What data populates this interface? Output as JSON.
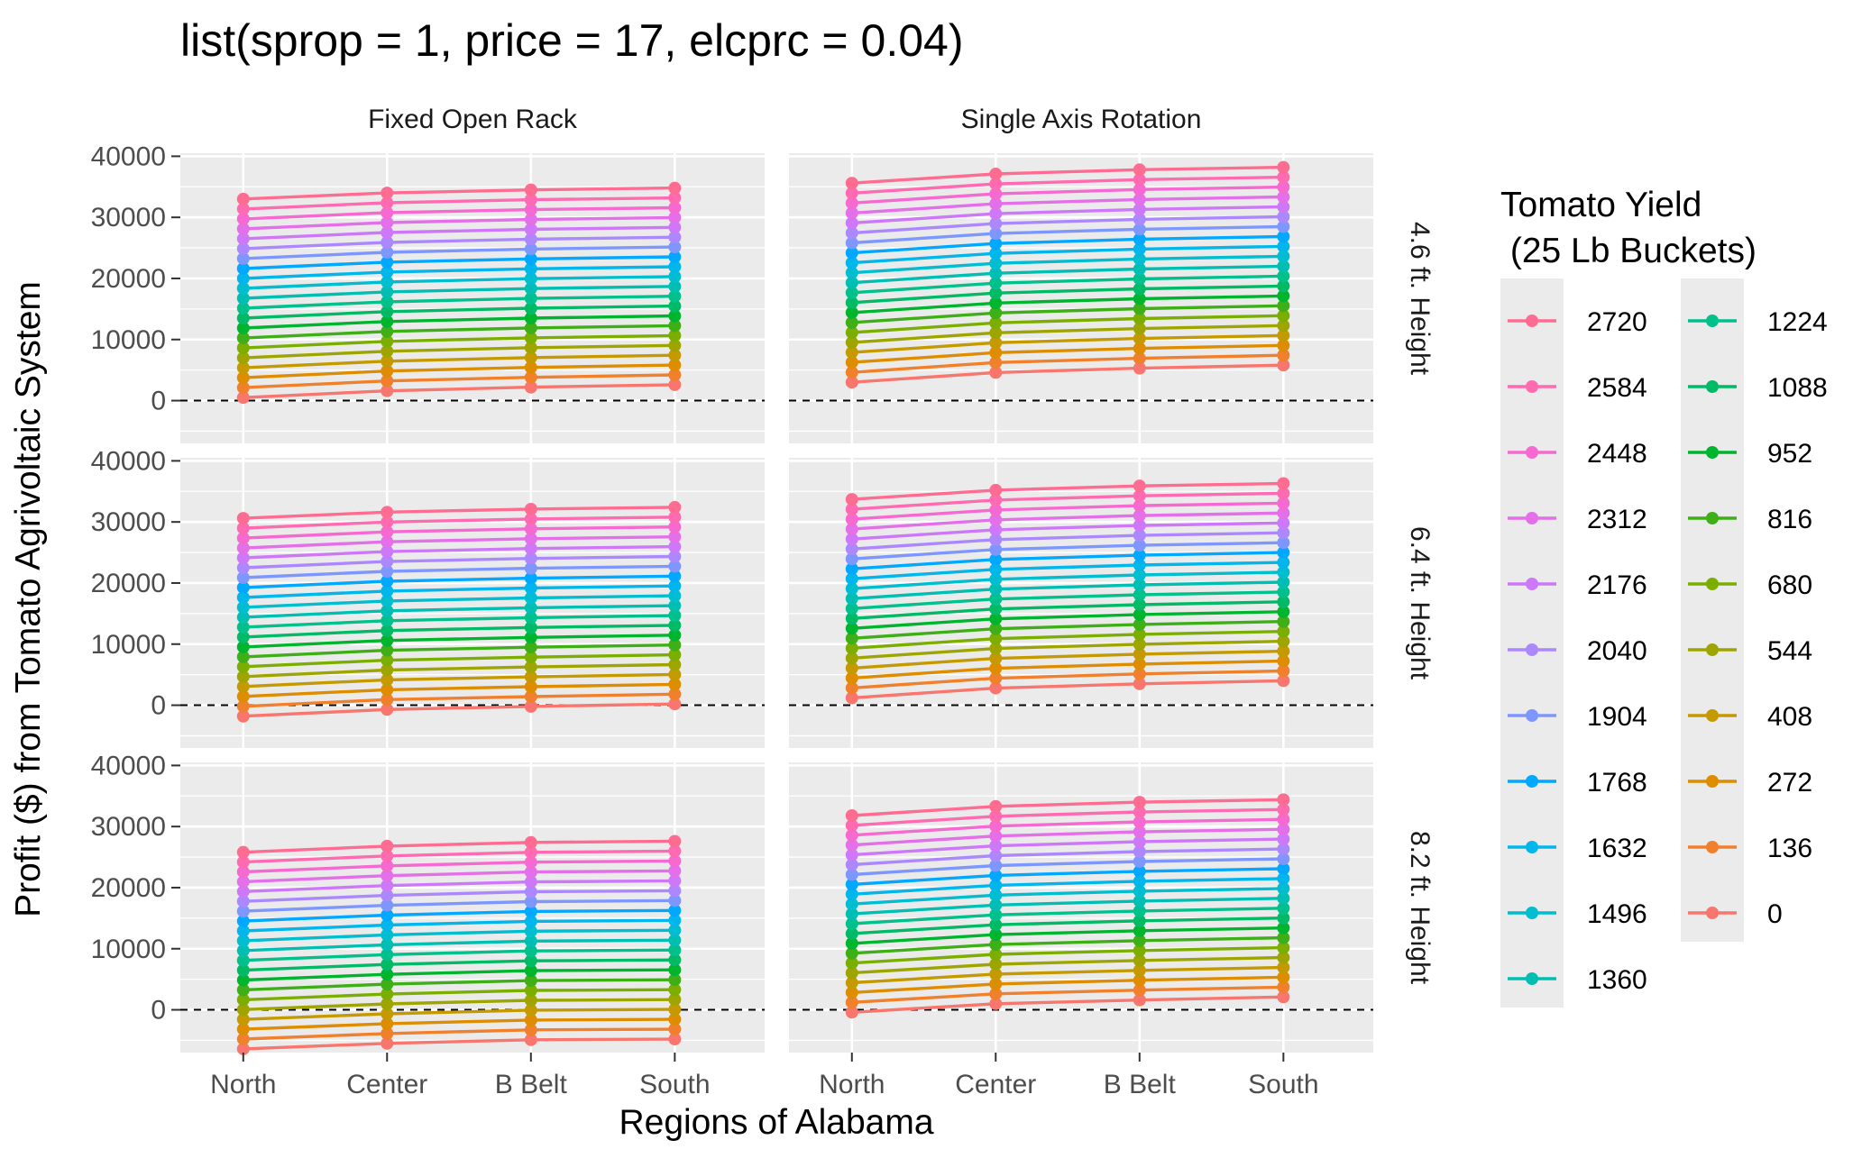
{
  "chart_data": {
    "type": "line",
    "title": "list(sprop = 1, price = 17, elcprc = 0.04)",
    "xlabel": "Regions of Alabama",
    "ylabel": "Profit ($) from Tomato Agrivoltaic System",
    "categories": [
      "North",
      "Center",
      "B Belt",
      "South"
    ],
    "ylim": [
      -7000,
      40500
    ],
    "yticks": [
      "0",
      "10000",
      "20000",
      "30000",
      "40000"
    ],
    "reference_line": {
      "y": 0,
      "style": "dashed"
    },
    "columns": [
      "Fixed Open Rack",
      "Single Axis Rotation"
    ],
    "rows": [
      "4.6 ft. Height",
      "6.4 ft. Height",
      "8.2 ft. Height"
    ],
    "legend": {
      "title_line1": "Tomato Yield",
      "title_line2": " (25 Lb Buckets)",
      "placement": "right",
      "entries": [
        {
          "label": "2720",
          "color": "#FF6C91"
        },
        {
          "label": "2584",
          "color": "#FF6AB0"
        },
        {
          "label": "2448",
          "color": "#F569D0"
        },
        {
          "label": "2312",
          "color": "#E36FE9"
        },
        {
          "label": "2176",
          "color": "#CD78F9"
        },
        {
          "label": "2040",
          "color": "#AC88FF"
        },
        {
          "label": "1904",
          "color": "#7D97FF"
        },
        {
          "label": "1768",
          "color": "#00A9FF"
        },
        {
          "label": "1632",
          "color": "#00B6EB"
        },
        {
          "label": "1496",
          "color": "#00BDD0"
        },
        {
          "label": "1360",
          "color": "#00BFB2"
        },
        {
          "label": "1224",
          "color": "#00C08B"
        },
        {
          "label": "1088",
          "color": "#00BA65"
        },
        {
          "label": "952",
          "color": "#00B52E"
        },
        {
          "label": "816",
          "color": "#3EAF17"
        },
        {
          "label": "680",
          "color": "#7CAE00"
        },
        {
          "label": "544",
          "color": "#9FA500"
        },
        {
          "label": "408",
          "color": "#C49A00"
        },
        {
          "label": "272",
          "color": "#DE8C00"
        },
        {
          "label": "136",
          "color": "#F0802C"
        },
        {
          "label": "0",
          "color": "#F8766D"
        }
      ]
    },
    "panels": [
      {
        "row": "4.6 ft. Height",
        "column": "Fixed Open Rack",
        "yield_0": [
          500,
          1600,
          2200,
          2600
        ],
        "yield_2720": [
          33000,
          34000,
          34500,
          34800
        ]
      },
      {
        "row": "4.6 ft. Height",
        "column": "Single Axis Rotation",
        "yield_0": [
          3000,
          4600,
          5300,
          5800
        ],
        "yield_2720": [
          35600,
          37100,
          37800,
          38200
        ]
      },
      {
        "row": "6.4 ft. Height",
        "column": "Fixed Open Rack",
        "yield_0": [
          -1800,
          -700,
          -200,
          200
        ],
        "yield_2720": [
          30600,
          31600,
          32100,
          32400
        ]
      },
      {
        "row": "6.4 ft. Height",
        "column": "Single Axis Rotation",
        "yield_0": [
          1200,
          2800,
          3500,
          4000
        ],
        "yield_2720": [
          33700,
          35200,
          35900,
          36300
        ]
      },
      {
        "row": "8.2 ft. Height",
        "column": "Fixed Open Rack",
        "yield_0": [
          -6400,
          -5500,
          -4900,
          -4800
        ],
        "yield_2720": [
          25800,
          26800,
          27400,
          27600
        ]
      },
      {
        "row": "8.2 ft. Height",
        "column": "Single Axis Rotation",
        "yield_0": [
          -400,
          1000,
          1600,
          2100
        ],
        "yield_2720": [
          31800,
          33300,
          34000,
          34400
        ]
      }
    ],
    "grid": true
  }
}
